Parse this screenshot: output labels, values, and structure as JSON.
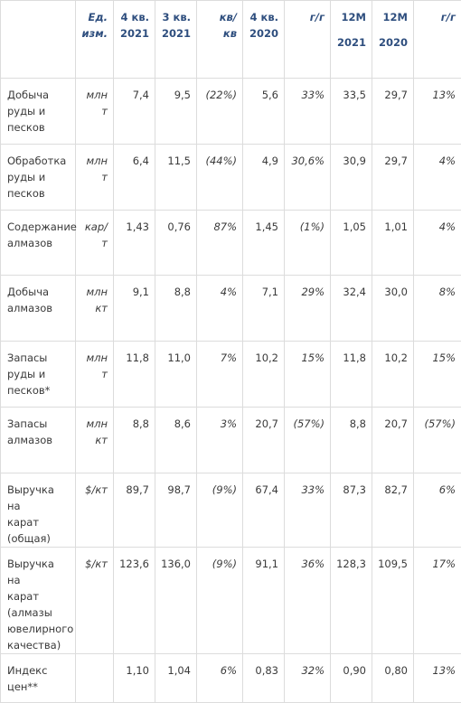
{
  "headers": [
    {
      "lines": [
        ""
      ]
    },
    {
      "lines": [
        "Ед.",
        "изм."
      ]
    },
    {
      "lines": [
        "4 кв.",
        "2021"
      ]
    },
    {
      "lines": [
        "3 кв.",
        "2021"
      ]
    },
    {
      "lines": [
        "кв/",
        "кв"
      ]
    },
    {
      "lines": [
        "4 кв.",
        "2020"
      ]
    },
    {
      "lines": [
        "г/г"
      ]
    },
    {
      "lines": [
        "12М",
        "2021"
      ]
    },
    {
      "lines": [
        "12М",
        "2020"
      ]
    },
    {
      "lines": [
        "г/г"
      ]
    }
  ],
  "rows": [
    {
      "label": [
        "Добыча",
        "руды и",
        "песков"
      ],
      "unit": [
        "млн",
        "т"
      ],
      "q4_2021": "7,4",
      "q3_2021": "9,5",
      "qoq": "(22%)",
      "q4_2020": "5,6",
      "yoy": "33%",
      "m12_2021": "33,5",
      "m12_2020": "29,7",
      "yoy12": "13%"
    },
    {
      "label": [
        "Обработка",
        "руды и",
        "песков"
      ],
      "unit": [
        "млн",
        "т"
      ],
      "q4_2021": "6,4",
      "q3_2021": "11,5",
      "qoq": "(44%)",
      "q4_2020": "4,9",
      "yoy": "30,6%",
      "m12_2021": "30,9",
      "m12_2020": "29,7",
      "yoy12": "4%"
    },
    {
      "label": [
        "Содержание",
        "алмазов"
      ],
      "unit": [
        "кар/",
        "т"
      ],
      "q4_2021": "1,43",
      "q3_2021": "0,76",
      "qoq": "87%",
      "q4_2020": "1,45",
      "yoy": "(1%)",
      "m12_2021": "1,05",
      "m12_2020": "1,01",
      "yoy12": "4%"
    },
    {
      "label": [
        "Добыча",
        "алмазов"
      ],
      "unit": [
        "млн",
        "кт"
      ],
      "q4_2021": "9,1",
      "q3_2021": "8,8",
      "qoq": "4%",
      "q4_2020": "7,1",
      "yoy": "29%",
      "m12_2021": "32,4",
      "m12_2020": "30,0",
      "yoy12": "8%"
    },
    {
      "label": [
        "Запасы",
        "руды и",
        "песков*"
      ],
      "unit": [
        "млн",
        "т"
      ],
      "q4_2021": "11,8",
      "q3_2021": "11,0",
      "qoq": "7%",
      "q4_2020": "10,2",
      "yoy": "15%",
      "m12_2021": "11,8",
      "m12_2020": "10,2",
      "yoy12": "15%"
    },
    {
      "label": [
        "Запасы",
        "алмазов"
      ],
      "unit": [
        "млн",
        "кт"
      ],
      "q4_2021": "8,8",
      "q3_2021": "8,6",
      "qoq": "3%",
      "q4_2020": "20,7",
      "yoy": "(57%)",
      "m12_2021": "8,8",
      "m12_2020": "20,7",
      "yoy12": "(57%)"
    },
    {
      "label": [
        "Выручка на",
        "карат",
        "(общая)"
      ],
      "unit": [
        "$/кт"
      ],
      "q4_2021": "89,7",
      "q3_2021": "98,7",
      "qoq": "(9%)",
      "q4_2020": "67,4",
      "yoy": "33%",
      "m12_2021": "87,3",
      "m12_2020": "82,7",
      "yoy12": "6%"
    },
    {
      "label": [
        "Выручка на",
        "карат",
        "(алмазы",
        "ювелирного",
        "качества)"
      ],
      "unit": [
        "$/кт"
      ],
      "q4_2021": "123,6",
      "q3_2021": "136,0",
      "qoq": "(9%)",
      "q4_2020": "91,1",
      "yoy": "36%",
      "m12_2021": "128,3",
      "m12_2020": "109,5",
      "yoy12": "17%"
    },
    {
      "label": [
        "Индекс",
        "цен**"
      ],
      "unit": [
        ""
      ],
      "q4_2021": "1,10",
      "q3_2021": "1,04",
      "qoq": "6%",
      "q4_2020": "0,83",
      "yoy": "32%",
      "m12_2021": "0,90",
      "m12_2020": "0,80",
      "yoy12": "13%"
    }
  ]
}
